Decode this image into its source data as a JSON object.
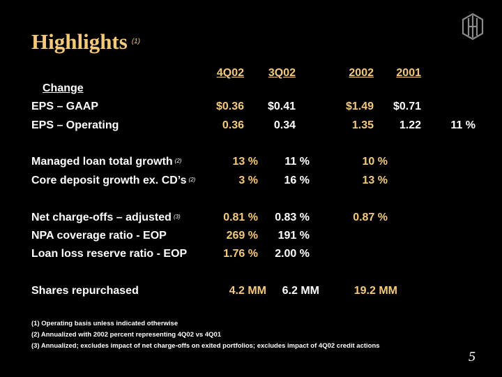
{
  "title": "Highlights",
  "title_note": "(1)",
  "logo_icon": "hb-monogram-icon",
  "headers": {
    "c1": "4Q02",
    "c2": "3Q02",
    "c3": "2002",
    "c4": "2001",
    "change": "Change"
  },
  "rows": [
    {
      "label": "EPS – GAAP",
      "note": "",
      "c1": "$0.36",
      "c2": "$0.41",
      "c3": "$1.49",
      "c4": "$0.71",
      "c5": ""
    },
    {
      "label": "EPS – Operating",
      "note": "",
      "c1": "0.36",
      "c2": "0.34",
      "c3": "1.35",
      "c4": "1.22",
      "c5": "11 %"
    },
    {
      "label": "Managed loan total growth",
      "note": "(2)",
      "c1": "13 %",
      "c2": "11 %",
      "c3": "10 %"
    },
    {
      "label": "Core deposit growth ex. CD’s",
      "note": "(2)",
      "c1": "3 %",
      "c2": "16 %",
      "c3": "13 %"
    },
    {
      "label": "Net charge-offs – adjusted",
      "note": "(3)",
      "c1": "0.81 %",
      "c2": "0.83 %",
      "c3": "0.87 %"
    },
    {
      "label": "NPA coverage ratio - EOP",
      "note": "",
      "c1": "269 %",
      "c2": "191 %"
    },
    {
      "label": "Loan loss reserve ratio - EOP",
      "note": "",
      "c1": "1.76 %",
      "c2": "2.00 %"
    },
    {
      "label": "Shares repurchased",
      "note": "",
      "c1": "4.2 MM",
      "c2": "6.2 MM",
      "c3": "19.2 MM"
    }
  ],
  "footnotes": [
    "(1) Operating basis unless indicated otherwise",
    "(2) Annualized with 2002 percent representing 4Q02 vs 4Q01",
    "(3) Annualized; excludes impact of net charge-offs on exited portfolios; excludes impact of 4Q02 credit actions"
  ],
  "page_number": "5",
  "colors": {
    "background": "#000000",
    "accent": "#F5C97C",
    "text": "#FFFFFF"
  }
}
